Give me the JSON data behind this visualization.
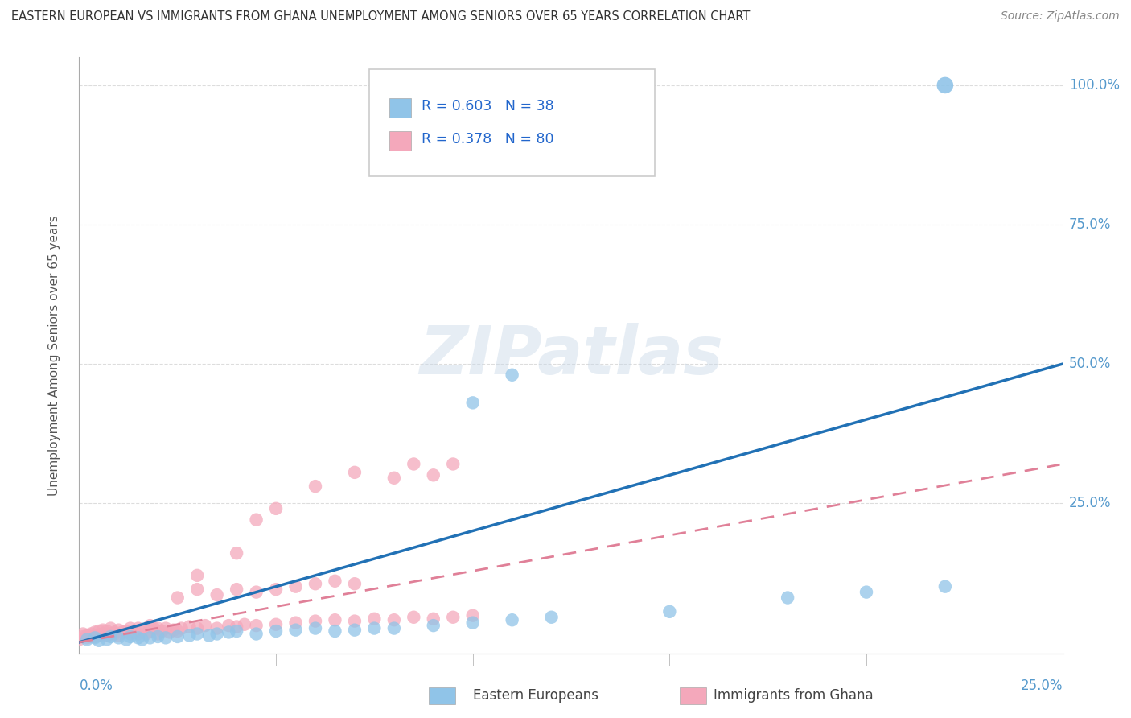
{
  "title": "EASTERN EUROPEAN VS IMMIGRANTS FROM GHANA UNEMPLOYMENT AMONG SENIORS OVER 65 YEARS CORRELATION CHART",
  "source": "Source: ZipAtlas.com",
  "ylabel": "Unemployment Among Seniors over 65 years",
  "y_ticks": [
    0.0,
    0.25,
    0.5,
    0.75,
    1.0
  ],
  "y_tick_labels": [
    "",
    "25.0%",
    "50.0%",
    "75.0%",
    "100.0%"
  ],
  "x_range": [
    0.0,
    0.25
  ],
  "y_range": [
    -0.02,
    1.05
  ],
  "watermark": "ZIPatlas",
  "blue_line_slope": 2.0,
  "blue_line_intercept": 0.0,
  "pink_line_slope": 1.28,
  "pink_line_intercept": 0.0,
  "background_color": "#ffffff",
  "grid_color": "#cccccc",
  "blue_color": "#90c4e8",
  "pink_color": "#f4a8bb",
  "blue_line_color": "#2171b5",
  "pink_line_color": "#e08098",
  "blue_scatter": [
    [
      0.002,
      0.005
    ],
    [
      0.004,
      0.008
    ],
    [
      0.005,
      0.003
    ],
    [
      0.007,
      0.005
    ],
    [
      0.008,
      0.01
    ],
    [
      0.01,
      0.008
    ],
    [
      0.012,
      0.005
    ],
    [
      0.013,
      0.01
    ],
    [
      0.015,
      0.008
    ],
    [
      0.016,
      0.005
    ],
    [
      0.018,
      0.008
    ],
    [
      0.02,
      0.01
    ],
    [
      0.022,
      0.008
    ],
    [
      0.025,
      0.01
    ],
    [
      0.028,
      0.012
    ],
    [
      0.03,
      0.015
    ],
    [
      0.033,
      0.012
    ],
    [
      0.035,
      0.015
    ],
    [
      0.038,
      0.018
    ],
    [
      0.04,
      0.02
    ],
    [
      0.045,
      0.015
    ],
    [
      0.05,
      0.02
    ],
    [
      0.055,
      0.022
    ],
    [
      0.06,
      0.025
    ],
    [
      0.065,
      0.02
    ],
    [
      0.07,
      0.022
    ],
    [
      0.075,
      0.025
    ],
    [
      0.08,
      0.025
    ],
    [
      0.09,
      0.03
    ],
    [
      0.1,
      0.035
    ],
    [
      0.11,
      0.04
    ],
    [
      0.12,
      0.045
    ],
    [
      0.15,
      0.055
    ],
    [
      0.18,
      0.08
    ],
    [
      0.2,
      0.09
    ],
    [
      0.22,
      0.1
    ],
    [
      0.1,
      0.43
    ],
    [
      0.11,
      0.48
    ],
    [
      0.22,
      1.0
    ]
  ],
  "pink_scatter": [
    [
      0.0,
      0.005
    ],
    [
      0.001,
      0.01
    ],
    [
      0.001,
      0.015
    ],
    [
      0.002,
      0.008
    ],
    [
      0.002,
      0.012
    ],
    [
      0.003,
      0.01
    ],
    [
      0.003,
      0.015
    ],
    [
      0.004,
      0.01
    ],
    [
      0.004,
      0.018
    ],
    [
      0.005,
      0.012
    ],
    [
      0.005,
      0.02
    ],
    [
      0.006,
      0.015
    ],
    [
      0.006,
      0.022
    ],
    [
      0.007,
      0.012
    ],
    [
      0.007,
      0.02
    ],
    [
      0.008,
      0.015
    ],
    [
      0.008,
      0.025
    ],
    [
      0.009,
      0.018
    ],
    [
      0.009,
      0.015
    ],
    [
      0.01,
      0.012
    ],
    [
      0.01,
      0.022
    ],
    [
      0.011,
      0.018
    ],
    [
      0.012,
      0.02
    ],
    [
      0.013,
      0.015
    ],
    [
      0.013,
      0.025
    ],
    [
      0.014,
      0.018
    ],
    [
      0.015,
      0.015
    ],
    [
      0.015,
      0.025
    ],
    [
      0.016,
      0.02
    ],
    [
      0.017,
      0.015
    ],
    [
      0.018,
      0.02
    ],
    [
      0.018,
      0.03
    ],
    [
      0.019,
      0.025
    ],
    [
      0.02,
      0.015
    ],
    [
      0.02,
      0.025
    ],
    [
      0.021,
      0.02
    ],
    [
      0.022,
      0.025
    ],
    [
      0.023,
      0.018
    ],
    [
      0.024,
      0.022
    ],
    [
      0.025,
      0.02
    ],
    [
      0.026,
      0.025
    ],
    [
      0.028,
      0.028
    ],
    [
      0.03,
      0.025
    ],
    [
      0.032,
      0.03
    ],
    [
      0.035,
      0.025
    ],
    [
      0.038,
      0.03
    ],
    [
      0.04,
      0.028
    ],
    [
      0.042,
      0.032
    ],
    [
      0.045,
      0.03
    ],
    [
      0.05,
      0.032
    ],
    [
      0.055,
      0.035
    ],
    [
      0.06,
      0.038
    ],
    [
      0.065,
      0.04
    ],
    [
      0.07,
      0.038
    ],
    [
      0.075,
      0.042
    ],
    [
      0.08,
      0.04
    ],
    [
      0.085,
      0.045
    ],
    [
      0.09,
      0.042
    ],
    [
      0.095,
      0.045
    ],
    [
      0.1,
      0.048
    ],
    [
      0.03,
      0.12
    ],
    [
      0.04,
      0.16
    ],
    [
      0.045,
      0.22
    ],
    [
      0.05,
      0.24
    ],
    [
      0.06,
      0.28
    ],
    [
      0.07,
      0.305
    ],
    [
      0.08,
      0.295
    ],
    [
      0.085,
      0.32
    ],
    [
      0.09,
      0.3
    ],
    [
      0.095,
      0.32
    ],
    [
      0.025,
      0.08
    ],
    [
      0.03,
      0.095
    ],
    [
      0.035,
      0.085
    ],
    [
      0.04,
      0.095
    ],
    [
      0.045,
      0.09
    ],
    [
      0.05,
      0.095
    ],
    [
      0.055,
      0.1
    ],
    [
      0.06,
      0.105
    ],
    [
      0.065,
      0.11
    ],
    [
      0.07,
      0.105
    ]
  ]
}
